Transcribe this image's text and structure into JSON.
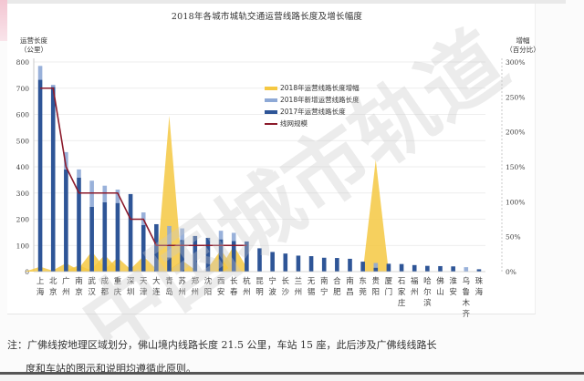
{
  "chart_data": {
    "type": "bar",
    "title": "2018年各城市城轨交通运营线路长度及增长幅度",
    "ylabel": "运营长度（公里）",
    "y2label": "增幅（百分比）",
    "ylim": [
      0,
      800
    ],
    "y2lim": [
      0,
      300
    ],
    "yticks": [
      "0",
      "100",
      "200",
      "300",
      "400",
      "500",
      "600",
      "700",
      "800"
    ],
    "y2ticks": [
      "0%",
      "50%",
      "100%",
      "150%",
      "200%",
      "250%",
      "300%"
    ],
    "grid": true,
    "legend_position": "upper-middle",
    "categories": [
      "上海",
      "北京",
      "广州",
      "南京",
      "武汉",
      "成都",
      "重庆",
      "深圳",
      "天津",
      "大连",
      "青岛",
      "苏州",
      "郑州",
      "沈阳",
      "西安",
      "长春",
      "杭州",
      "昆明",
      "宁波",
      "长沙",
      "兰州",
      "无锡",
      "南宁",
      "合肥",
      "南昌",
      "东莞",
      "贵阳",
      "厦门",
      "石家庄",
      "福州",
      "哈尔滨",
      "佛山",
      "淮安",
      "乌鲁木齐",
      "珠海"
    ],
    "category_labels": [
      [
        "上",
        "海"
      ],
      [
        "北",
        "京"
      ],
      [
        "广",
        "州"
      ],
      [
        "南",
        "京"
      ],
      [
        "武",
        "汉"
      ],
      [
        "成",
        "都"
      ],
      [
        "重",
        "庆"
      ],
      [
        "深",
        "圳"
      ],
      [
        "天",
        "津"
      ],
      [
        "大",
        "连"
      ],
      [
        "青",
        "岛"
      ],
      [
        "苏",
        "州"
      ],
      [
        "郑",
        "州"
      ],
      [
        "沈",
        "阳"
      ],
      [
        "西",
        "安"
      ],
      [
        "长",
        "春"
      ],
      [
        "杭",
        "州"
      ],
      [
        "昆",
        "明"
      ],
      [
        "宁",
        "波"
      ],
      [
        "长",
        "沙"
      ],
      [
        "兰",
        "州"
      ],
      [
        "无",
        "锡"
      ],
      [
        "南",
        "宁"
      ],
      [
        "合",
        "肥"
      ],
      [
        "南",
        "昌"
      ],
      [
        "东",
        "莞"
      ],
      [
        "贵",
        "阳"
      ],
      [
        "厦",
        "门"
      ],
      [
        "石",
        "家",
        "庄"
      ],
      [
        "福",
        "州"
      ],
      [
        "哈",
        "尔",
        "滨"
      ],
      [
        "佛",
        "山"
      ],
      [
        "淮",
        "安"
      ],
      [
        "乌",
        "鲁",
        "木",
        "齐"
      ],
      [
        "珠",
        "海"
      ]
    ],
    "series": [
      {
        "name": "2018年运营线路长度增幅",
        "type": "area",
        "axis": "right",
        "color": "#f5c842",
        "values": [
          7,
          1,
          12,
          9,
          29,
          24,
          20,
          0,
          22,
          0,
          223,
          16,
          0,
          0,
          31,
          37,
          0,
          0,
          0,
          0,
          0,
          0,
          0,
          0,
          0,
          0,
          160,
          0,
          0,
          0,
          0,
          0,
          0,
          0,
          0
        ]
      },
      {
        "name": "2018年新增运营线路长度",
        "type": "bar",
        "axis": "left",
        "color": "#8ea9d6",
        "values": [
          53,
          8,
          66,
          31,
          100,
          63,
          51,
          0,
          48,
          0,
          120,
          44,
          0,
          0,
          33,
          31,
          0,
          0,
          0,
          0,
          0,
          0,
          0,
          0,
          0,
          0,
          18,
          0,
          0,
          0,
          0,
          0,
          0,
          17,
          0
        ]
      },
      {
        "name": "2017年运营线路长度",
        "type": "bar",
        "axis": "left",
        "color": "#2e5597",
        "values": [
          732,
          705,
          390,
          359,
          247,
          265,
          262,
          296,
          178,
          181,
          54,
          121,
          136,
          129,
          123,
          117,
          115,
          89,
          75,
          69,
          61,
          59,
          53,
          52,
          49,
          38,
          15,
          30,
          29,
          25,
          22,
          21,
          20,
          0,
          9
        ]
      },
      {
        "name": "线网规模",
        "type": "step-line",
        "axis": "left",
        "color": "#8b1a2b",
        "values": [
          700,
          700,
          400,
          300,
          300,
          300,
          300,
          200,
          200,
          100,
          100,
          100,
          100,
          100,
          100,
          100,
          100,
          null,
          null,
          null,
          null,
          null,
          null,
          null,
          null,
          null,
          null,
          null,
          null,
          null,
          null,
          null,
          null,
          null,
          null
        ]
      }
    ]
  },
  "legend": {
    "items": [
      {
        "label": "2018年运营线路长度增幅",
        "color": "#f5c842",
        "kind": "swatch"
      },
      {
        "label": "2018年新增运营线路长度",
        "color": "#8ea9d6",
        "kind": "swatch"
      },
      {
        "label": "2017年运营线路长度",
        "color": "#2e5597",
        "kind": "swatch"
      },
      {
        "label": "线网规模",
        "color": "#8b1a2b",
        "kind": "line"
      }
    ]
  },
  "axis_titles": {
    "left_line1": "运营长度",
    "left_line2": "（公里）",
    "right_line1": "增幅",
    "right_line2": "（百分比）"
  },
  "note": {
    "line1": "注：广佛线按地理区域划分，佛山境内线路长度 21.5 公里，车站 15 座，此后涉及广佛线线路长",
    "line2": "度和车站的图示和说明均遵循此原则。"
  },
  "watermark": "中国城市轨道"
}
